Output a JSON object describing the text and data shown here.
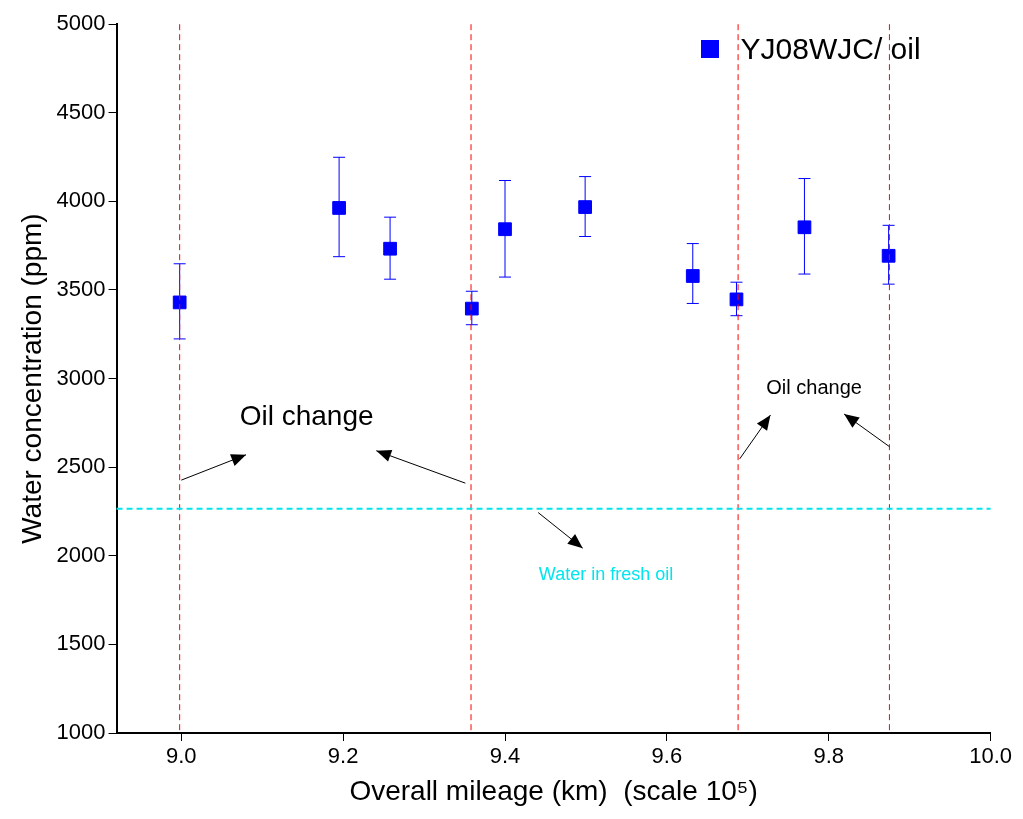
{
  "chart_data": {
    "type": "scatter",
    "xlabel": "Overall mileage (km)  (scale 10⁵)",
    "ylabel": "Water concentration (ppm)",
    "x": [
      8.998,
      9.195,
      9.258,
      9.359,
      9.4,
      9.499,
      9.632,
      9.686,
      9.77,
      9.874
    ],
    "series": [
      {
        "name": "YJ08WJC/ oil",
        "color": "#0000ff",
        "values": [
          3430,
          3963,
          3733,
          3395,
          3843,
          3968,
          3579,
          3447,
          3854,
          3693
        ],
        "errors": [
          [
            3224,
            3648
          ],
          [
            3688,
            4249
          ],
          [
            3561,
            3911
          ],
          [
            3304,
            3493
          ],
          [
            3573,
            4118
          ],
          [
            3802,
            4140
          ],
          [
            3424,
            3762
          ],
          [
            3355,
            3544
          ],
          [
            3590,
            4129
          ],
          [
            3533,
            3865
          ]
        ]
      }
    ],
    "xlim": [
      8.92,
      10.0
    ],
    "xticks": [
      {
        "value": 9,
        "label": "9.0"
      },
      {
        "value": 9.2,
        "label": "9.2"
      },
      {
        "value": 9.4,
        "label": "9.4"
      },
      {
        "value": 9.6,
        "label": "9.6"
      },
      {
        "value": 9.8,
        "label": "9.8"
      },
      {
        "value": 10,
        "label": "10.0"
      }
    ],
    "ylim": [
      1000,
      5000
    ],
    "yticks": [
      1000,
      1500,
      2000,
      2500,
      3000,
      3500,
      4000,
      4500,
      5000
    ],
    "grid": false,
    "legend": "top right",
    "marker": "square",
    "ref_lines": [
      {
        "axis": "x",
        "value": 8.998,
        "color": "#ff0000",
        "line_style": "dashed"
      },
      {
        "axis": "x",
        "value": 9.358,
        "color": "#ff0000",
        "line_style": "dashed"
      },
      {
        "axis": "x",
        "value": 9.688,
        "color": "#ff0000",
        "line_style": "dashed"
      },
      {
        "axis": "x",
        "value": 9.875,
        "color": "#ff0000",
        "line_style": "dashed"
      },
      {
        "axis": "y",
        "value": 2265,
        "label": "Water in fresh oil",
        "color": "#00e5ee",
        "line_style": "dashed"
      }
    ],
    "annotations": [
      {
        "text": "Oil change",
        "x": 8.998,
        "y": 2427
      },
      {
        "text": "Oil change",
        "x": 9.688,
        "y": 2547
      }
    ]
  }
}
